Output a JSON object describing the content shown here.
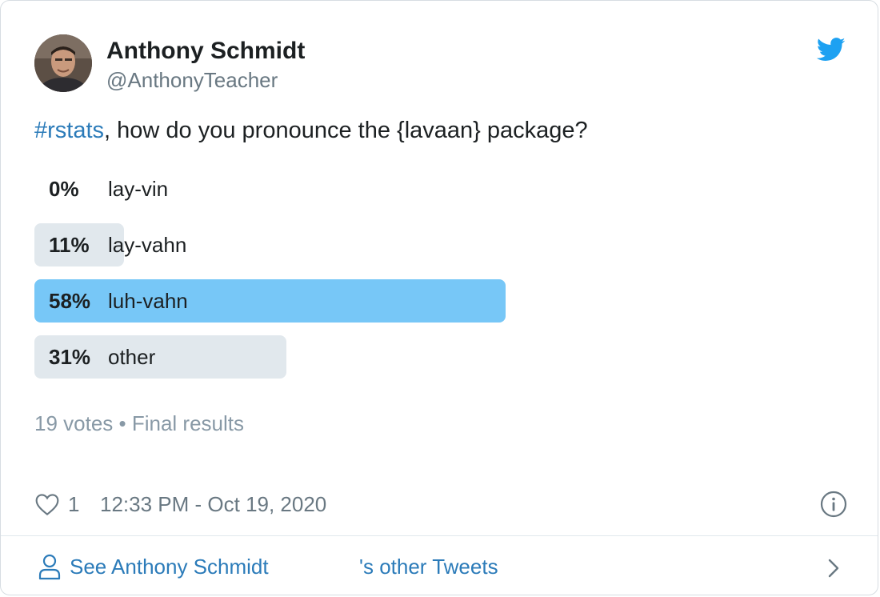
{
  "author": {
    "name": "Anthony Schmidt",
    "handle": "@AnthonyTeacher"
  },
  "tweet": {
    "hashtag": "#rstats",
    "text": ", how do you pronounce the {lavaan} package?"
  },
  "poll": {
    "options": [
      {
        "percent_label": "0%",
        "label": "lay-vin",
        "fraction": 0.0,
        "winner": false
      },
      {
        "percent_label": "11%",
        "label": "lay-vahn",
        "fraction": 0.11,
        "winner": false
      },
      {
        "percent_label": "58%",
        "label": "luh-vahn",
        "fraction": 0.58,
        "winner": true
      },
      {
        "percent_label": "31%",
        "label": "other",
        "fraction": 0.31,
        "winner": false
      }
    ],
    "meta": "19 votes • Final results"
  },
  "footer": {
    "likes": "1",
    "timestamp": "12:33 PM - Oct 19, 2020"
  },
  "see_more": {
    "left_text": "See Anthony Schmidt",
    "right_text": "'s other Tweets"
  },
  "icons": {
    "brand": "twitter-bird-icon",
    "like": "heart-icon",
    "info": "info-icon",
    "profile": "person-icon",
    "next": "chevron-right-icon"
  },
  "colors": {
    "link": "#2b7bb9",
    "winner_bar": "#77c7f7",
    "bar": "#e1e8ed",
    "muted": "#697882",
    "brand": "#1da1f2"
  }
}
